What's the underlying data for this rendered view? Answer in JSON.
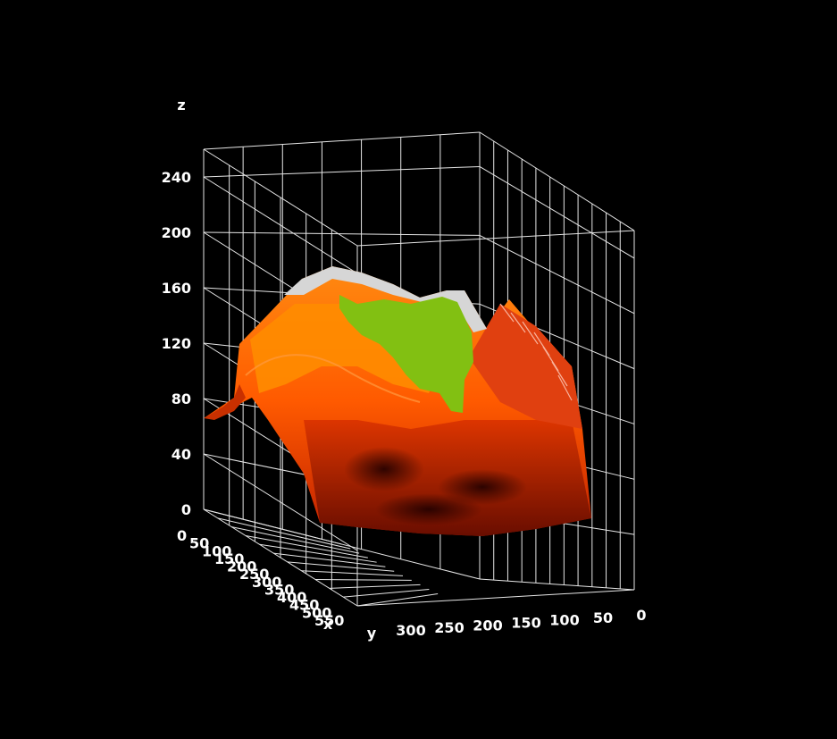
{
  "chart_data": {
    "type": "surface-3d",
    "title": "",
    "axes": {
      "x": {
        "label": "x",
        "ticks": [
          "0",
          "50",
          "100",
          "150",
          "200",
          "250",
          "300",
          "350",
          "400",
          "450",
          "500",
          "550"
        ]
      },
      "y": {
        "label": "y",
        "ticks": [
          "300",
          "250",
          "200",
          "150",
          "100",
          "50",
          "0"
        ]
      },
      "z": {
        "label": "z",
        "ticks": [
          "0",
          "40",
          "80",
          "120",
          "160",
          "200",
          "240"
        ],
        "range": [
          0,
          260
        ]
      }
    },
    "grid": true,
    "background": "#000000",
    "surface_colors": [
      "#ff4a00",
      "#ff8a00",
      "#80c010",
      "#d8d8d8",
      "#3a0800"
    ]
  }
}
